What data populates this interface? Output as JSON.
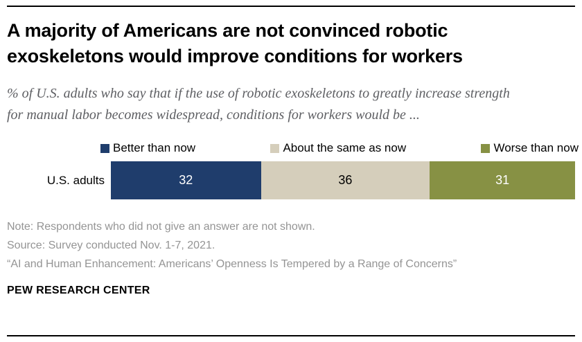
{
  "title": "A majority of Americans are not convinced robotic exoskeletons would improve conditions for workers",
  "subtitle": "% of U.S. adults who say that if the use of robotic exoskeletons to greatly increase strength for manual labor becomes widespread, conditions for workers would be ...",
  "chart_data": {
    "type": "bar",
    "orientation": "horizontal-stacked",
    "categories": [
      "U.S. adults"
    ],
    "series": [
      {
        "name": "Better than now",
        "values": [
          32
        ],
        "color": "#1f3d6c",
        "label_color": "#ffffff"
      },
      {
        "name": "About the same as now",
        "values": [
          36
        ],
        "color": "#d5cebb",
        "label_color": "#000000"
      },
      {
        "name": "Worse than now",
        "values": [
          31
        ],
        "color": "#879144",
        "label_color": "#ffffff"
      }
    ],
    "legend_position": "top",
    "xlim": [
      0,
      99
    ],
    "grid": false,
    "data_labels_shown": true
  },
  "notes": {
    "note": "Note: Respondents who did not give an answer are not shown.",
    "source": "Source: Survey conducted Nov. 1-7, 2021.",
    "report": "“AI and Human Enhancement: Americans’ Openness Is Tempered by a Range of Concerns”"
  },
  "footer": {
    "brand": "PEW RESEARCH CENTER"
  }
}
